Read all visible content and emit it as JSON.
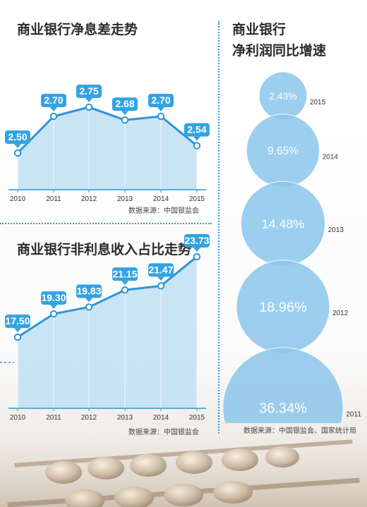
{
  "colors": {
    "accent": "#2e95d6",
    "area_fill": "#bfdff3",
    "bubble_fill": "#8cc6ec",
    "label_bg": "#33a3e3"
  },
  "chart_data": [
    {
      "type": "line",
      "title": "商业银行净息差走势",
      "x": [
        "2010",
        "2011",
        "2012",
        "2013",
        "2014",
        "2015"
      ],
      "values": [
        2.5,
        2.7,
        2.75,
        2.68,
        2.7,
        2.54
      ],
      "data_labels": [
        "2.50",
        "2.70",
        "2.75",
        "2.68",
        "2.70",
        "2.54"
      ],
      "ylim": [
        2.3,
        2.8
      ],
      "source": "数据来源：中国银监会"
    },
    {
      "type": "line",
      "title": "商业银行非利息收入占比走势",
      "x": [
        "2010",
        "2011",
        "2012",
        "2013",
        "2014",
        "2015"
      ],
      "values": [
        17.5,
        19.3,
        19.83,
        21.15,
        21.47,
        23.73
      ],
      "data_labels": [
        "17.50",
        "19.30",
        "19.83",
        "21.15",
        "21.47",
        "23.73"
      ],
      "ylim": [
        12.0,
        24.0
      ],
      "source": "数据来源：中国银监会"
    },
    {
      "type": "scatter",
      "title": "商业银行\n净利润同比增速",
      "title_lines": [
        "商业银行",
        "净利润同比增速"
      ],
      "x": [
        "2015",
        "2014",
        "2013",
        "2012",
        "2011"
      ],
      "values": [
        2.43,
        9.65,
        14.48,
        18.96,
        36.34
      ],
      "data_labels": [
        "2.43%",
        "9.65%",
        "14.48%",
        "18.96%",
        "36.34%"
      ],
      "source": "数据来源：中国银监会、国家统计局"
    }
  ]
}
